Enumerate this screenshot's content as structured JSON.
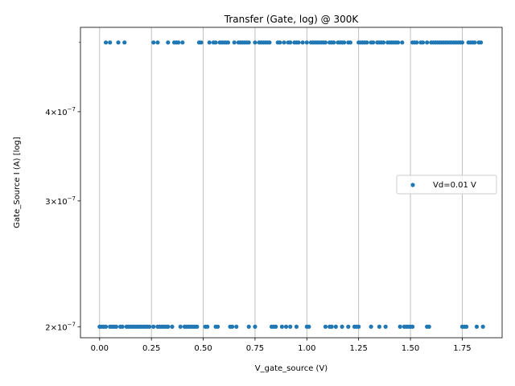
{
  "chart_data": {
    "type": "scatter",
    "title": "Transfer (Gate, log) @ 300K",
    "xlabel": "V_gate_source (V)",
    "ylabel": "Gate_Source I (A) [log]",
    "xlim": [
      -0.0925,
      1.9425
    ],
    "ylim": [
      1.93e-07,
      5.25e-07
    ],
    "yscale": "log",
    "x_ticks": [
      {
        "value": 0.0,
        "label": "0.00"
      },
      {
        "value": 0.25,
        "label": "0.25"
      },
      {
        "value": 0.5,
        "label": "0.50"
      },
      {
        "value": 0.75,
        "label": "0.75"
      },
      {
        "value": 1.0,
        "label": "1.00"
      },
      {
        "value": 1.25,
        "label": "1.25"
      },
      {
        "value": 1.5,
        "label": "1.50"
      },
      {
        "value": 1.75,
        "label": "1.75"
      }
    ],
    "y_ticks": [
      {
        "value": 2e-07,
        "mantissa": "2",
        "exponent": "−7"
      },
      {
        "value": 3e-07,
        "mantissa": "3",
        "exponent": "−7"
      },
      {
        "value": 4e-07,
        "mantissa": "4",
        "exponent": "−7"
      }
    ],
    "y_minor_ticks": [
      5e-07
    ],
    "grid": "x-major",
    "legend": {
      "position": "center-right",
      "entries": [
        "Vd=0.01 V"
      ]
    },
    "series": [
      {
        "name": "Vd=0.01 V",
        "color": "#1f77b4",
        "high_y": 5e-07,
        "low_y": 2e-07,
        "high_x": [
          0.03,
          0.05,
          0.09,
          0.12,
          0.26,
          0.28,
          0.33,
          0.36,
          0.37,
          0.38,
          0.4,
          0.48,
          0.49,
          0.53,
          0.55,
          0.56,
          0.58,
          0.59,
          0.6,
          0.61,
          0.62,
          0.65,
          0.67,
          0.68,
          0.69,
          0.7,
          0.71,
          0.72,
          0.75,
          0.77,
          0.78,
          0.79,
          0.8,
          0.81,
          0.82,
          0.86,
          0.87,
          0.89,
          0.91,
          0.92,
          0.94,
          0.95,
          0.96,
          0.98,
          1.0,
          1.02,
          1.03,
          1.04,
          1.05,
          1.06,
          1.07,
          1.08,
          1.09,
          1.11,
          1.12,
          1.13,
          1.15,
          1.16,
          1.17,
          1.18,
          1.2,
          1.21,
          1.25,
          1.26,
          1.27,
          1.28,
          1.29,
          1.31,
          1.32,
          1.34,
          1.35,
          1.36,
          1.37,
          1.39,
          1.4,
          1.41,
          1.42,
          1.43,
          1.44,
          1.46,
          1.51,
          1.52,
          1.53,
          1.55,
          1.56,
          1.58,
          1.6,
          1.61,
          1.62,
          1.63,
          1.64,
          1.65,
          1.66,
          1.67,
          1.68,
          1.69,
          1.7,
          1.71,
          1.72,
          1.73,
          1.74,
          1.75,
          1.78,
          1.79,
          1.8,
          1.81,
          1.83,
          1.84
        ],
        "low_x": [
          0.0,
          0.01,
          0.02,
          0.03,
          0.05,
          0.06,
          0.07,
          0.08,
          0.1,
          0.11,
          0.13,
          0.14,
          0.15,
          0.16,
          0.17,
          0.18,
          0.19,
          0.2,
          0.21,
          0.22,
          0.23,
          0.24,
          0.26,
          0.28,
          0.29,
          0.3,
          0.31,
          0.32,
          0.33,
          0.35,
          0.39,
          0.41,
          0.42,
          0.43,
          0.44,
          0.45,
          0.46,
          0.47,
          0.51,
          0.52,
          0.56,
          0.57,
          0.63,
          0.64,
          0.66,
          0.72,
          0.75,
          0.83,
          0.84,
          0.85,
          0.88,
          0.9,
          0.92,
          0.95,
          1.0,
          1.01,
          1.09,
          1.11,
          1.12,
          1.14,
          1.17,
          1.2,
          1.23,
          1.24,
          1.25,
          1.31,
          1.35,
          1.38,
          1.45,
          1.47,
          1.48,
          1.49,
          1.5,
          1.51,
          1.58,
          1.59,
          1.75,
          1.76,
          1.77,
          1.82,
          1.85
        ]
      }
    ]
  }
}
